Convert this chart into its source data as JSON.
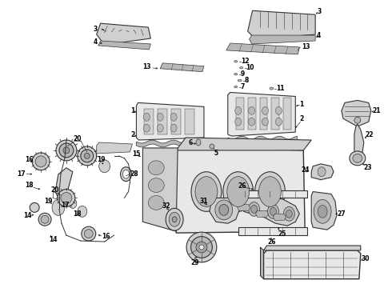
{
  "background_color": "#ffffff",
  "line_color": "#333333",
  "label_fontsize": 5.5,
  "fig_width": 4.9,
  "fig_height": 3.6,
  "dpi": 100
}
